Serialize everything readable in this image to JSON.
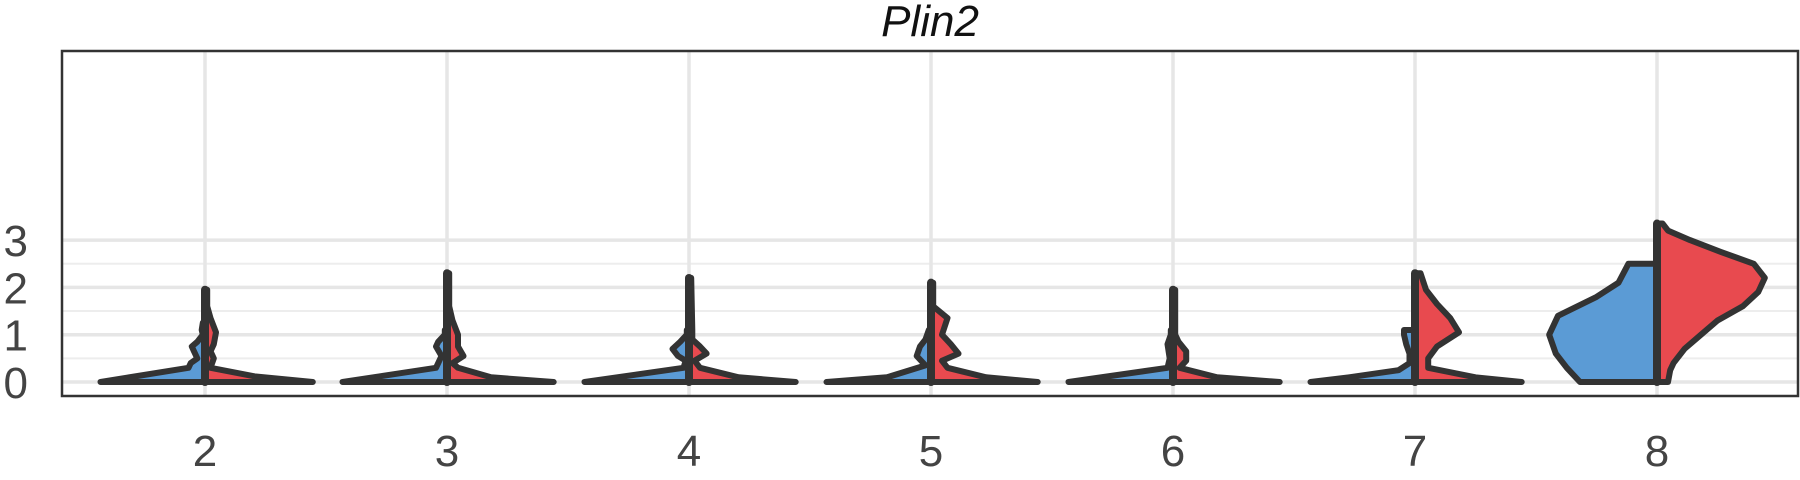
{
  "chart_data": {
    "type": "violin",
    "split": true,
    "title": "Plin2",
    "xlabel": "",
    "ylabel": "",
    "categories": [
      "2",
      "3",
      "4",
      "5",
      "6",
      "7",
      "8"
    ],
    "ylim": [
      -0.25,
      3.4
    ],
    "yticks": [
      0,
      1,
      2,
      3
    ],
    "grid": true,
    "legend": "none",
    "colors": {
      "left": "#5b9bd5",
      "right": "#e84a4f"
    },
    "violins": [
      {
        "category": "2",
        "left": {
          "max": 1.25,
          "profile": [
            [
              0,
              0.95
            ],
            [
              0.3,
              0.15
            ],
            [
              0.4,
              0.13
            ],
            [
              0.5,
              0.07
            ],
            [
              0.65,
              0.1
            ],
            [
              0.75,
              0.12
            ],
            [
              0.85,
              0.07
            ],
            [
              1.0,
              0.02
            ],
            [
              1.1,
              0.03
            ],
            [
              1.25,
              0.02
            ]
          ]
        },
        "right": {
          "max": 1.95,
          "profile": [
            [
              0,
              0.98
            ],
            [
              0.12,
              0.45
            ],
            [
              0.3,
              0.05
            ],
            [
              0.5,
              0.08
            ],
            [
              0.65,
              0.05
            ],
            [
              0.8,
              0.08
            ],
            [
              1.05,
              0.1
            ],
            [
              1.35,
              0.05
            ],
            [
              1.6,
              0.02
            ],
            [
              1.95,
              0.02
            ]
          ]
        }
      },
      {
        "category": "3",
        "left": {
          "max": 1.1,
          "profile": [
            [
              0,
              0.95
            ],
            [
              0.3,
              0.1
            ],
            [
              0.55,
              0.05
            ],
            [
              0.75,
              0.1
            ],
            [
              0.85,
              0.08
            ],
            [
              1.0,
              0.02
            ],
            [
              1.1,
              0.02
            ]
          ]
        },
        "right": {
          "max": 2.3,
          "profile": [
            [
              0,
              0.97
            ],
            [
              0.1,
              0.4
            ],
            [
              0.3,
              0.1
            ],
            [
              0.4,
              0.05
            ],
            [
              0.55,
              0.15
            ],
            [
              0.75,
              0.1
            ],
            [
              1.0,
              0.1
            ],
            [
              1.3,
              0.05
            ],
            [
              1.6,
              0.02
            ],
            [
              2.3,
              0.02
            ]
          ]
        }
      },
      {
        "category": "4",
        "left": {
          "max": 1.1,
          "profile": [
            [
              0,
              0.95
            ],
            [
              0.3,
              0.05
            ],
            [
              0.45,
              0.03
            ],
            [
              0.55,
              0.1
            ],
            [
              0.7,
              0.15
            ],
            [
              0.85,
              0.08
            ],
            [
              1.0,
              0.02
            ],
            [
              1.1,
              0.02
            ]
          ]
        },
        "right": {
          "max": 2.2,
          "profile": [
            [
              0,
              0.97
            ],
            [
              0.1,
              0.45
            ],
            [
              0.3,
              0.1
            ],
            [
              0.45,
              0.05
            ],
            [
              0.6,
              0.16
            ],
            [
              0.75,
              0.1
            ],
            [
              0.9,
              0.03
            ],
            [
              1.1,
              0.03
            ],
            [
              2.2,
              0.02
            ]
          ]
        }
      },
      {
        "category": "5",
        "left": {
          "max": 1.1,
          "profile": [
            [
              0,
              0.95
            ],
            [
              0.1,
              0.4
            ],
            [
              0.35,
              0.05
            ],
            [
              0.55,
              0.13
            ],
            [
              0.75,
              0.1
            ],
            [
              0.9,
              0.05
            ],
            [
              1.1,
              0.02
            ]
          ]
        },
        "right": {
          "max": 2.1,
          "profile": [
            [
              0,
              0.97
            ],
            [
              0.1,
              0.5
            ],
            [
              0.3,
              0.15
            ],
            [
              0.45,
              0.1
            ],
            [
              0.6,
              0.25
            ],
            [
              0.8,
              0.18
            ],
            [
              1.0,
              0.1
            ],
            [
              1.35,
              0.15
            ],
            [
              1.6,
              0.02
            ],
            [
              2.1,
              0.02
            ]
          ]
        }
      },
      {
        "category": "6",
        "left": {
          "max": 1.1,
          "profile": [
            [
              0,
              0.95
            ],
            [
              0.3,
              0.05
            ],
            [
              0.5,
              0.03
            ],
            [
              0.8,
              0.05
            ],
            [
              1.0,
              0.02
            ],
            [
              1.1,
              0.02
            ]
          ]
        },
        "right": {
          "max": 1.95,
          "profile": [
            [
              0,
              0.97
            ],
            [
              0.1,
              0.4
            ],
            [
              0.3,
              0.06
            ],
            [
              0.45,
              0.12
            ],
            [
              0.65,
              0.12
            ],
            [
              0.85,
              0.05
            ],
            [
              1.0,
              0.02
            ],
            [
              1.95,
              0.02
            ]
          ]
        }
      },
      {
        "category": "7",
        "left": {
          "max": 1.1,
          "profile": [
            [
              0,
              0.95
            ],
            [
              0.1,
              0.6
            ],
            [
              0.25,
              0.15
            ],
            [
              0.4,
              0.05
            ],
            [
              0.6,
              0.05
            ],
            [
              0.8,
              0.08
            ],
            [
              1.0,
              0.1
            ],
            [
              1.1,
              0.1
            ]
          ]
        },
        "right": {
          "max": 2.3,
          "profile": [
            [
              0,
              0.97
            ],
            [
              0.1,
              0.55
            ],
            [
              0.3,
              0.12
            ],
            [
              0.5,
              0.12
            ],
            [
              0.75,
              0.2
            ],
            [
              1.05,
              0.4
            ],
            [
              1.35,
              0.32
            ],
            [
              1.65,
              0.2
            ],
            [
              1.95,
              0.1
            ],
            [
              2.3,
              0.05
            ]
          ]
        }
      },
      {
        "category": "8",
        "left": {
          "max": 2.5,
          "profile": [
            [
              0,
              0.7
            ],
            [
              0.3,
              0.82
            ],
            [
              0.6,
              0.92
            ],
            [
              1.0,
              0.98
            ],
            [
              1.4,
              0.9
            ],
            [
              1.8,
              0.55
            ],
            [
              2.1,
              0.35
            ],
            [
              2.5,
              0.26
            ]
          ]
        },
        "right": {
          "max": 3.35,
          "profile": [
            [
              0,
              0.1
            ],
            [
              0.25,
              0.12
            ],
            [
              0.4,
              0.15
            ],
            [
              0.7,
              0.25
            ],
            [
              1.0,
              0.4
            ],
            [
              1.3,
              0.55
            ],
            [
              1.6,
              0.78
            ],
            [
              1.9,
              0.92
            ],
            [
              2.2,
              0.98
            ],
            [
              2.5,
              0.88
            ],
            [
              2.75,
              0.58
            ],
            [
              3.0,
              0.3
            ],
            [
              3.2,
              0.1
            ],
            [
              3.35,
              0.05
            ]
          ]
        }
      }
    ]
  }
}
